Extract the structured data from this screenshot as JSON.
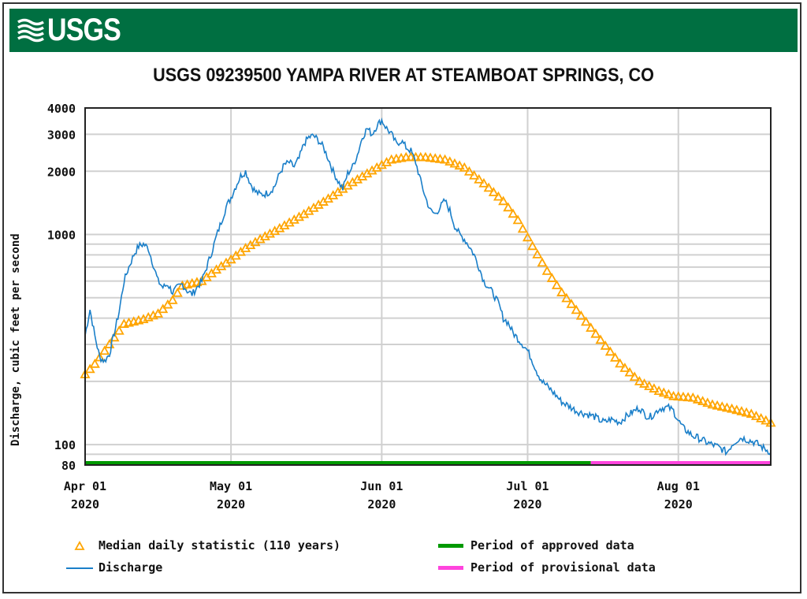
{
  "header": {
    "logo_text": "USGS",
    "banner_color": "#006f41"
  },
  "chart_data": {
    "type": "line",
    "title": "USGS 09239500 YAMPA RIVER AT STEAMBOAT SPRINGS, CO",
    "ylabel": "Discharge, cubic feet per second",
    "xlabel": "",
    "yscale": "log",
    "ylim": [
      80,
      4000
    ],
    "xlim_days_since_apr01": [
      0,
      141
    ],
    "y_ticks": [
      {
        "value": 4000,
        "label": "4000"
      },
      {
        "value": 3000,
        "label": "3000"
      },
      {
        "value": 2000,
        "label": "2000"
      },
      {
        "value": 1000,
        "label": "1000"
      },
      {
        "value": 100,
        "label": "100"
      },
      {
        "value": 80,
        "label": "80"
      }
    ],
    "y_minor_gridlines": [
      90,
      200,
      300,
      400,
      500,
      600,
      700,
      800,
      900
    ],
    "x_ticks": [
      {
        "day": 0,
        "label": "Apr 01",
        "year": "2020"
      },
      {
        "day": 30,
        "label": "May 01",
        "year": "2020"
      },
      {
        "day": 61,
        "label": "Jun 01",
        "year": "2020"
      },
      {
        "day": 91,
        "label": "Jul 01",
        "year": "2020"
      },
      {
        "day": 122,
        "label": "Aug 01",
        "year": "2020"
      }
    ],
    "grid": true,
    "series": [
      {
        "name": "Median daily statistic (110 years)",
        "style": "triangle-markers",
        "color": "#ffa500",
        "x": [
          0,
          2,
          5,
          8,
          12,
          15,
          18,
          20,
          24,
          27,
          30,
          33,
          36,
          40,
          45,
          50,
          55,
          60,
          63,
          66,
          70,
          74,
          78,
          82,
          86,
          89,
          92,
          95,
          98,
          102,
          106,
          110,
          114,
          118,
          121,
          125,
          129,
          133,
          137,
          141
        ],
        "values": [
          216,
          242,
          300,
          375,
          395,
          420,
          487,
          570,
          600,
          680,
          760,
          860,
          950,
          1070,
          1250,
          1480,
          1770,
          2080,
          2270,
          2330,
          2330,
          2270,
          2080,
          1750,
          1440,
          1170,
          880,
          670,
          530,
          410,
          315,
          243,
          200,
          180,
          170,
          167,
          155,
          148,
          140,
          127
        ]
      },
      {
        "name": "Discharge",
        "style": "line",
        "color": "#1a7fc9",
        "x": [
          0,
          1,
          2,
          3,
          4,
          5,
          6,
          7,
          8,
          9,
          10,
          11,
          12,
          13,
          14,
          15,
          16,
          17,
          18,
          19,
          20,
          21,
          22,
          23,
          24,
          25,
          26,
          27,
          28,
          29,
          30,
          31,
          32,
          33,
          34,
          35,
          36,
          37,
          38,
          39,
          40,
          41,
          42,
          43,
          44,
          45,
          46,
          47,
          48,
          49,
          50,
          51,
          52,
          53,
          54,
          55,
          56,
          57,
          58,
          59,
          60,
          61,
          62,
          63,
          64,
          65,
          66,
          67,
          68,
          69,
          70,
          71,
          72,
          73,
          74,
          75,
          76,
          77,
          78,
          79,
          80,
          81,
          82,
          83,
          84,
          85,
          86,
          87,
          88,
          89,
          90,
          91,
          92,
          93,
          94,
          95,
          96,
          97,
          98,
          99,
          100,
          101,
          102,
          103,
          104,
          105,
          106,
          107,
          108,
          109,
          110,
          111,
          112,
          113,
          114,
          115,
          116,
          117,
          118,
          119,
          120,
          121,
          122,
          123,
          124,
          125,
          126,
          127,
          128,
          129,
          130,
          131,
          132,
          133,
          134,
          135,
          136,
          137,
          138,
          139,
          140,
          141
        ],
        "values": [
          330,
          440,
          330,
          260,
          250,
          270,
          340,
          430,
          600,
          700,
          800,
          880,
          900,
          860,
          720,
          600,
          560,
          580,
          530,
          560,
          580,
          540,
          520,
          560,
          600,
          700,
          820,
          980,
          1150,
          1350,
          1500,
          1700,
          1900,
          2000,
          1750,
          1600,
          1550,
          1560,
          1600,
          1700,
          1950,
          2150,
          2200,
          2100,
          2300,
          2700,
          2900,
          2950,
          2800,
          2600,
          2300,
          2000,
          1800,
          1650,
          1950,
          2100,
          2400,
          2900,
          3200,
          3000,
          3300,
          3500,
          3200,
          3000,
          2700,
          2800,
          2600,
          2500,
          2200,
          1800,
          1500,
          1300,
          1250,
          1350,
          1450,
          1300,
          1100,
          1000,
          950,
          880,
          800,
          700,
          600,
          560,
          520,
          470,
          400,
          380,
          340,
          320,
          300,
          280,
          250,
          220,
          200,
          190,
          180,
          170,
          160,
          155,
          150,
          145,
          142,
          140,
          138,
          135,
          130,
          128,
          132,
          130,
          128,
          135,
          140,
          145,
          150,
          140,
          135,
          140,
          148,
          150,
          150,
          145,
          130,
          120,
          115,
          110,
          108,
          105,
          102,
          100,
          98,
          95,
          92,
          100,
          105,
          108,
          106,
          104,
          102,
          98,
          95,
          92
        ]
      }
    ],
    "periods": [
      {
        "name": "Period of approved data",
        "color": "#009900",
        "start_day": 0,
        "end_day": 104
      },
      {
        "name": "Period of provisional data",
        "color": "#ff44dd",
        "start_day": 104,
        "end_day": 141
      }
    ],
    "legend": {
      "placement": "bottom",
      "items": [
        {
          "label": "Median daily statistic (110 years)",
          "symbol": "triangle",
          "color": "#ffa500"
        },
        {
          "label": "Discharge",
          "symbol": "line",
          "color": "#1a7fc9"
        },
        {
          "label": "Period of approved data",
          "symbol": "bar",
          "color": "#009900"
        },
        {
          "label": "Period of provisional data",
          "symbol": "bar",
          "color": "#ff44dd"
        }
      ]
    }
  }
}
